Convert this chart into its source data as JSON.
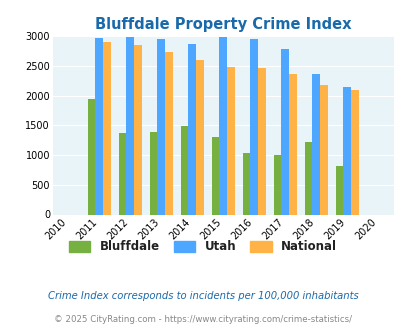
{
  "title": "Bluffdale Property Crime Index",
  "plot_years": [
    2011,
    2012,
    2013,
    2014,
    2015,
    2016,
    2017,
    2018,
    2019
  ],
  "bluffdale": [
    1950,
    1370,
    1390,
    1490,
    1300,
    1030,
    1000,
    1220,
    810
  ],
  "utah": [
    2970,
    2990,
    2950,
    2870,
    2980,
    2950,
    2780,
    2370,
    2150
  ],
  "national": [
    2900,
    2850,
    2740,
    2600,
    2490,
    2470,
    2360,
    2180,
    2100
  ],
  "bluffdale_color": "#76b041",
  "utah_color": "#4da6ff",
  "national_color": "#ffb347",
  "bg_color": "#e8f4f8",
  "title_color": "#1a6aab",
  "ylim": [
    0,
    3000
  ],
  "yticks": [
    0,
    500,
    1000,
    1500,
    2000,
    2500,
    3000
  ],
  "all_years": [
    2010,
    2011,
    2012,
    2013,
    2014,
    2015,
    2016,
    2017,
    2018,
    2019,
    2020
  ],
  "footnote1": "Crime Index corresponds to incidents per 100,000 inhabitants",
  "footnote2": "© 2025 CityRating.com - https://www.cityrating.com/crime-statistics/",
  "legend_labels": [
    "Bluffdale",
    "Utah",
    "National"
  ],
  "legend_text_color": "#222222"
}
